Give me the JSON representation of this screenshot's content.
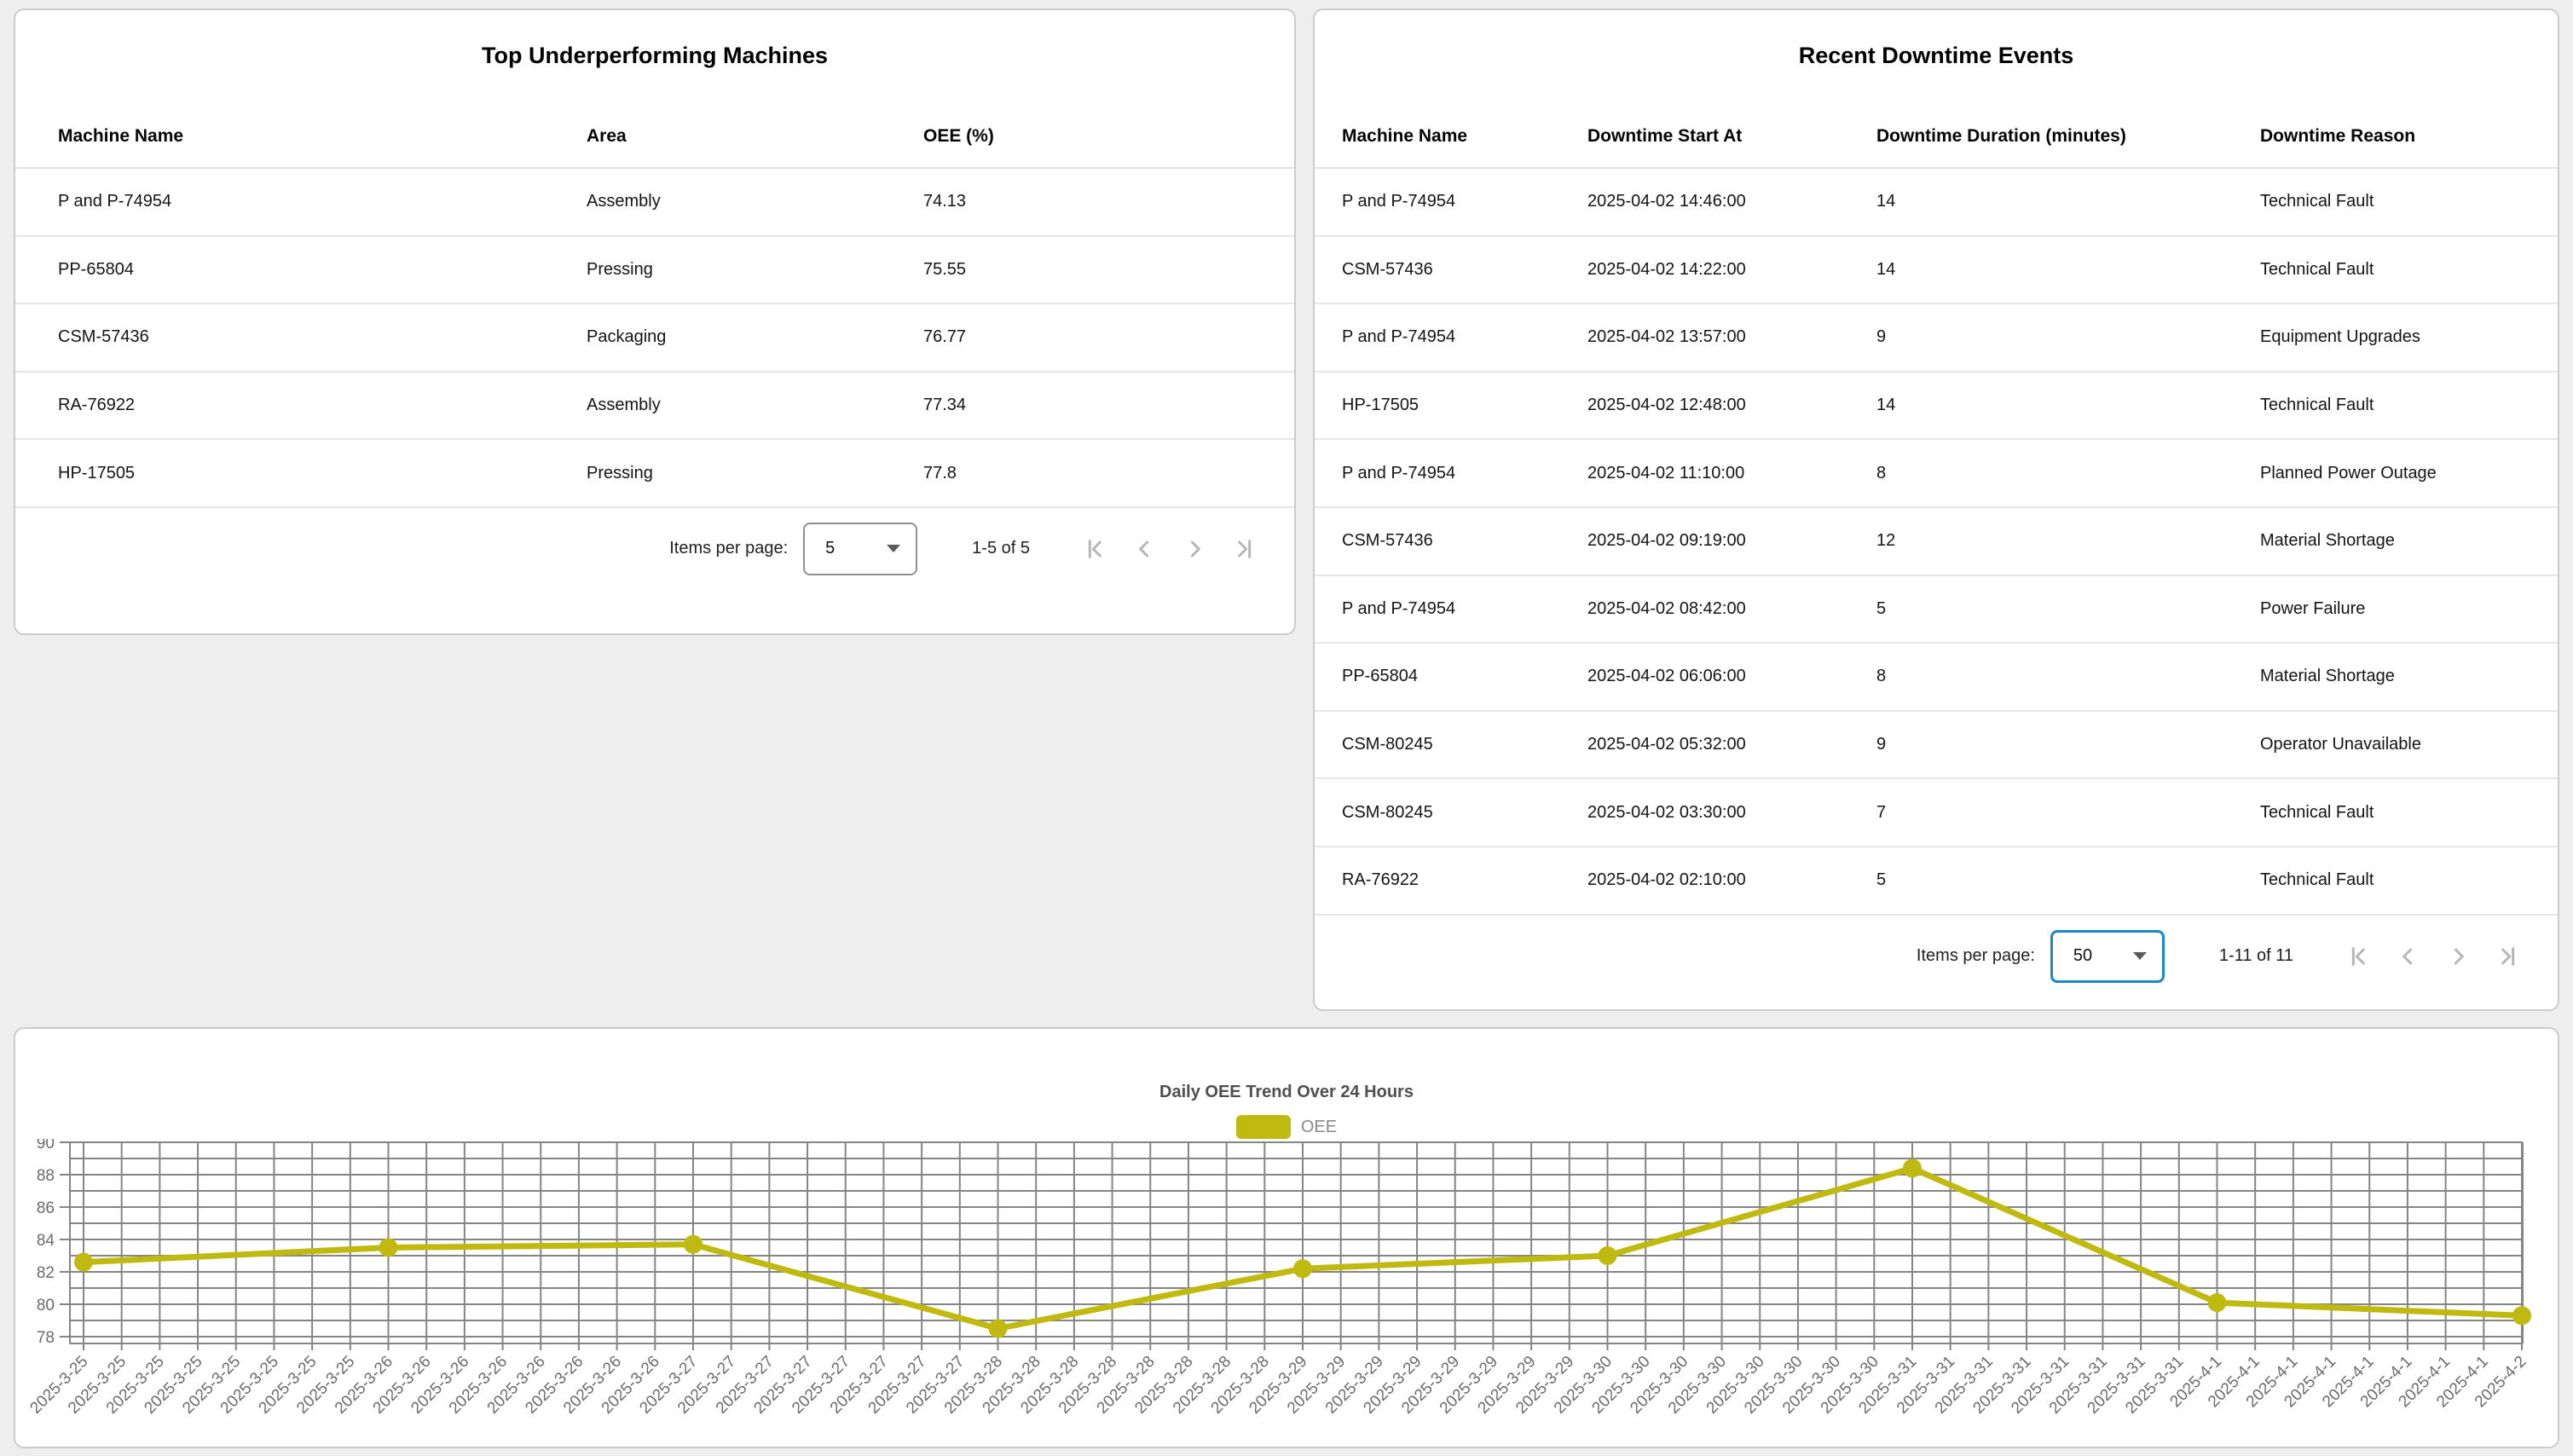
{
  "left_table": {
    "title": "Top Underperforming Machines",
    "columns": [
      "Machine Name",
      "Area",
      "OEE (%)"
    ],
    "rows": [
      [
        "P and P-74954",
        "Assembly",
        "74.13"
      ],
      [
        "PP-65804",
        "Pressing",
        "75.55"
      ],
      [
        "CSM-57436",
        "Packaging",
        "76.77"
      ],
      [
        "RA-76922",
        "Assembly",
        "77.34"
      ],
      [
        "HP-17505",
        "Pressing",
        "77.8"
      ]
    ],
    "paginator": {
      "items_per_page_label": "Items per page:",
      "page_size": "5",
      "range_label": "1-5 of 5"
    }
  },
  "right_table": {
    "title": "Recent Downtime Events",
    "columns": [
      "Machine Name",
      "Downtime Start At",
      "Downtime Duration (minutes)",
      "Downtime Reason"
    ],
    "rows": [
      [
        "P and P-74954",
        "2025-04-02 14:46:00",
        "14",
        "Technical Fault"
      ],
      [
        "CSM-57436",
        "2025-04-02 14:22:00",
        "14",
        "Technical Fault"
      ],
      [
        "P and P-74954",
        "2025-04-02 13:57:00",
        "9",
        "Equipment Upgrades"
      ],
      [
        "HP-17505",
        "2025-04-02 12:48:00",
        "14",
        "Technical Fault"
      ],
      [
        "P and P-74954",
        "2025-04-02 11:10:00",
        "8",
        "Planned Power Outage"
      ],
      [
        "CSM-57436",
        "2025-04-02 09:19:00",
        "12",
        "Material Shortage"
      ],
      [
        "P and P-74954",
        "2025-04-02 08:42:00",
        "5",
        "Power Failure"
      ],
      [
        "PP-65804",
        "2025-04-02 06:06:00",
        "8",
        "Material Shortage"
      ],
      [
        "CSM-80245",
        "2025-04-02 05:32:00",
        "9",
        "Operator Unavailable"
      ],
      [
        "CSM-80245",
        "2025-04-02 03:30:00",
        "7",
        "Technical Fault"
      ],
      [
        "RA-76922",
        "2025-04-02 02:10:00",
        "5",
        "Technical Fault"
      ]
    ],
    "paginator": {
      "items_per_page_label": "Items per page:",
      "page_size": "50",
      "range_label": "1-11 of 11"
    }
  },
  "chart_data": {
    "type": "line",
    "title": "Daily OEE Trend Over 24 Hours",
    "series": [
      {
        "name": "OEE",
        "x": [
          "2025-3-25",
          "2025-3-26",
          "2025-3-27",
          "2025-3-28",
          "2025-3-29",
          "2025-3-30",
          "2025-3-31",
          "2025-4-1",
          "2025-4-2"
        ],
        "values": [
          82.6,
          83.5,
          83.7,
          78.5,
          82.2,
          83.0,
          88.4,
          80.1,
          79.3
        ]
      }
    ],
    "ticks_per_day": 8,
    "y_ticks": [
      78,
      80,
      82,
      84,
      86,
      88,
      90
    ],
    "ylim": [
      77.6,
      90
    ],
    "grid": true,
    "legend_position": "top",
    "series_color": "#c0ba10"
  },
  "colors": {
    "page_background": "#eeeeee",
    "focus_blue": "#1a89ca",
    "oee_line": "#c0ba10",
    "gridline": "#858585",
    "tick_label": "#6b6b6b"
  }
}
